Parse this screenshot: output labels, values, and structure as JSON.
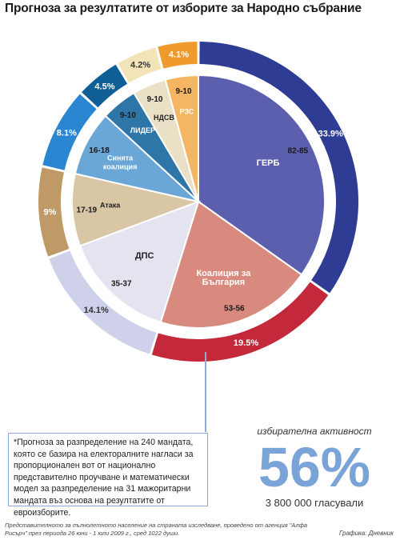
{
  "title": "Прогноза за резултатите от изборите за Народно събрание",
  "chart_data": {
    "type": "pie",
    "slices": [
      {
        "party": "ГЕРБ",
        "percent": "33.9%",
        "value": 33.9,
        "seats": "82-85",
        "color": "#2e3d93",
        "inner": "#5b5fae"
      },
      {
        "party": "Коалиция за България",
        "percent": "19.5%",
        "value": 19.5,
        "seats": "53-56",
        "color": "#c3293a",
        "inner": "#d98a7e"
      },
      {
        "party": "ДПС",
        "percent": "14.1%",
        "value": 14.1,
        "seats": "35-37",
        "color": "#cfd1ea",
        "inner": "#e4e3f0"
      },
      {
        "party": "Атака",
        "percent": "9%",
        "value": 9.0,
        "seats": "17-19",
        "color": "#bf9a66",
        "inner": "#d9c6a5"
      },
      {
        "party": "Синята коалиция",
        "percent": "8.1%",
        "value": 8.1,
        "seats": "16-18",
        "color": "#2a86d0",
        "inner": "#6aa6d6"
      },
      {
        "party": "ЛИДЕР",
        "percent": "4.5%",
        "value": 4.5,
        "seats": "9-10",
        "color": "#0f5f96",
        "inner": "#2f76a8"
      },
      {
        "party": "НДСВ",
        "percent": "4.2%",
        "value": 4.2,
        "seats": "9-10",
        "color": "#f3e4b8",
        "inner": "#e9e0c6"
      },
      {
        "party": "РЗС",
        "percent": "4.1%",
        "value": 4.1,
        "seats": "9-10",
        "color": "#f09a2e",
        "inner": "#f4b662"
      }
    ]
  },
  "note": "*Прогноза за разпределение на 240 мандата, която се базира на електоралните нагласи за пропорционален вот от национално представително проучване и математически модел за разпределение на 31 мажоритарни мандата въз основа на резултатите от евроизборите.",
  "turnout": {
    "label": "избирателна активност",
    "value": "56%",
    "voters": "3 800 000 гласували"
  },
  "source": "Представителното за пълнолетното население на страната изследване, проведено от агенция \"Алфа Рисърч\" през периода 26 юни - 1 юли 2009 г., сред 1022 души.",
  "credit": "Графика: Дневник"
}
